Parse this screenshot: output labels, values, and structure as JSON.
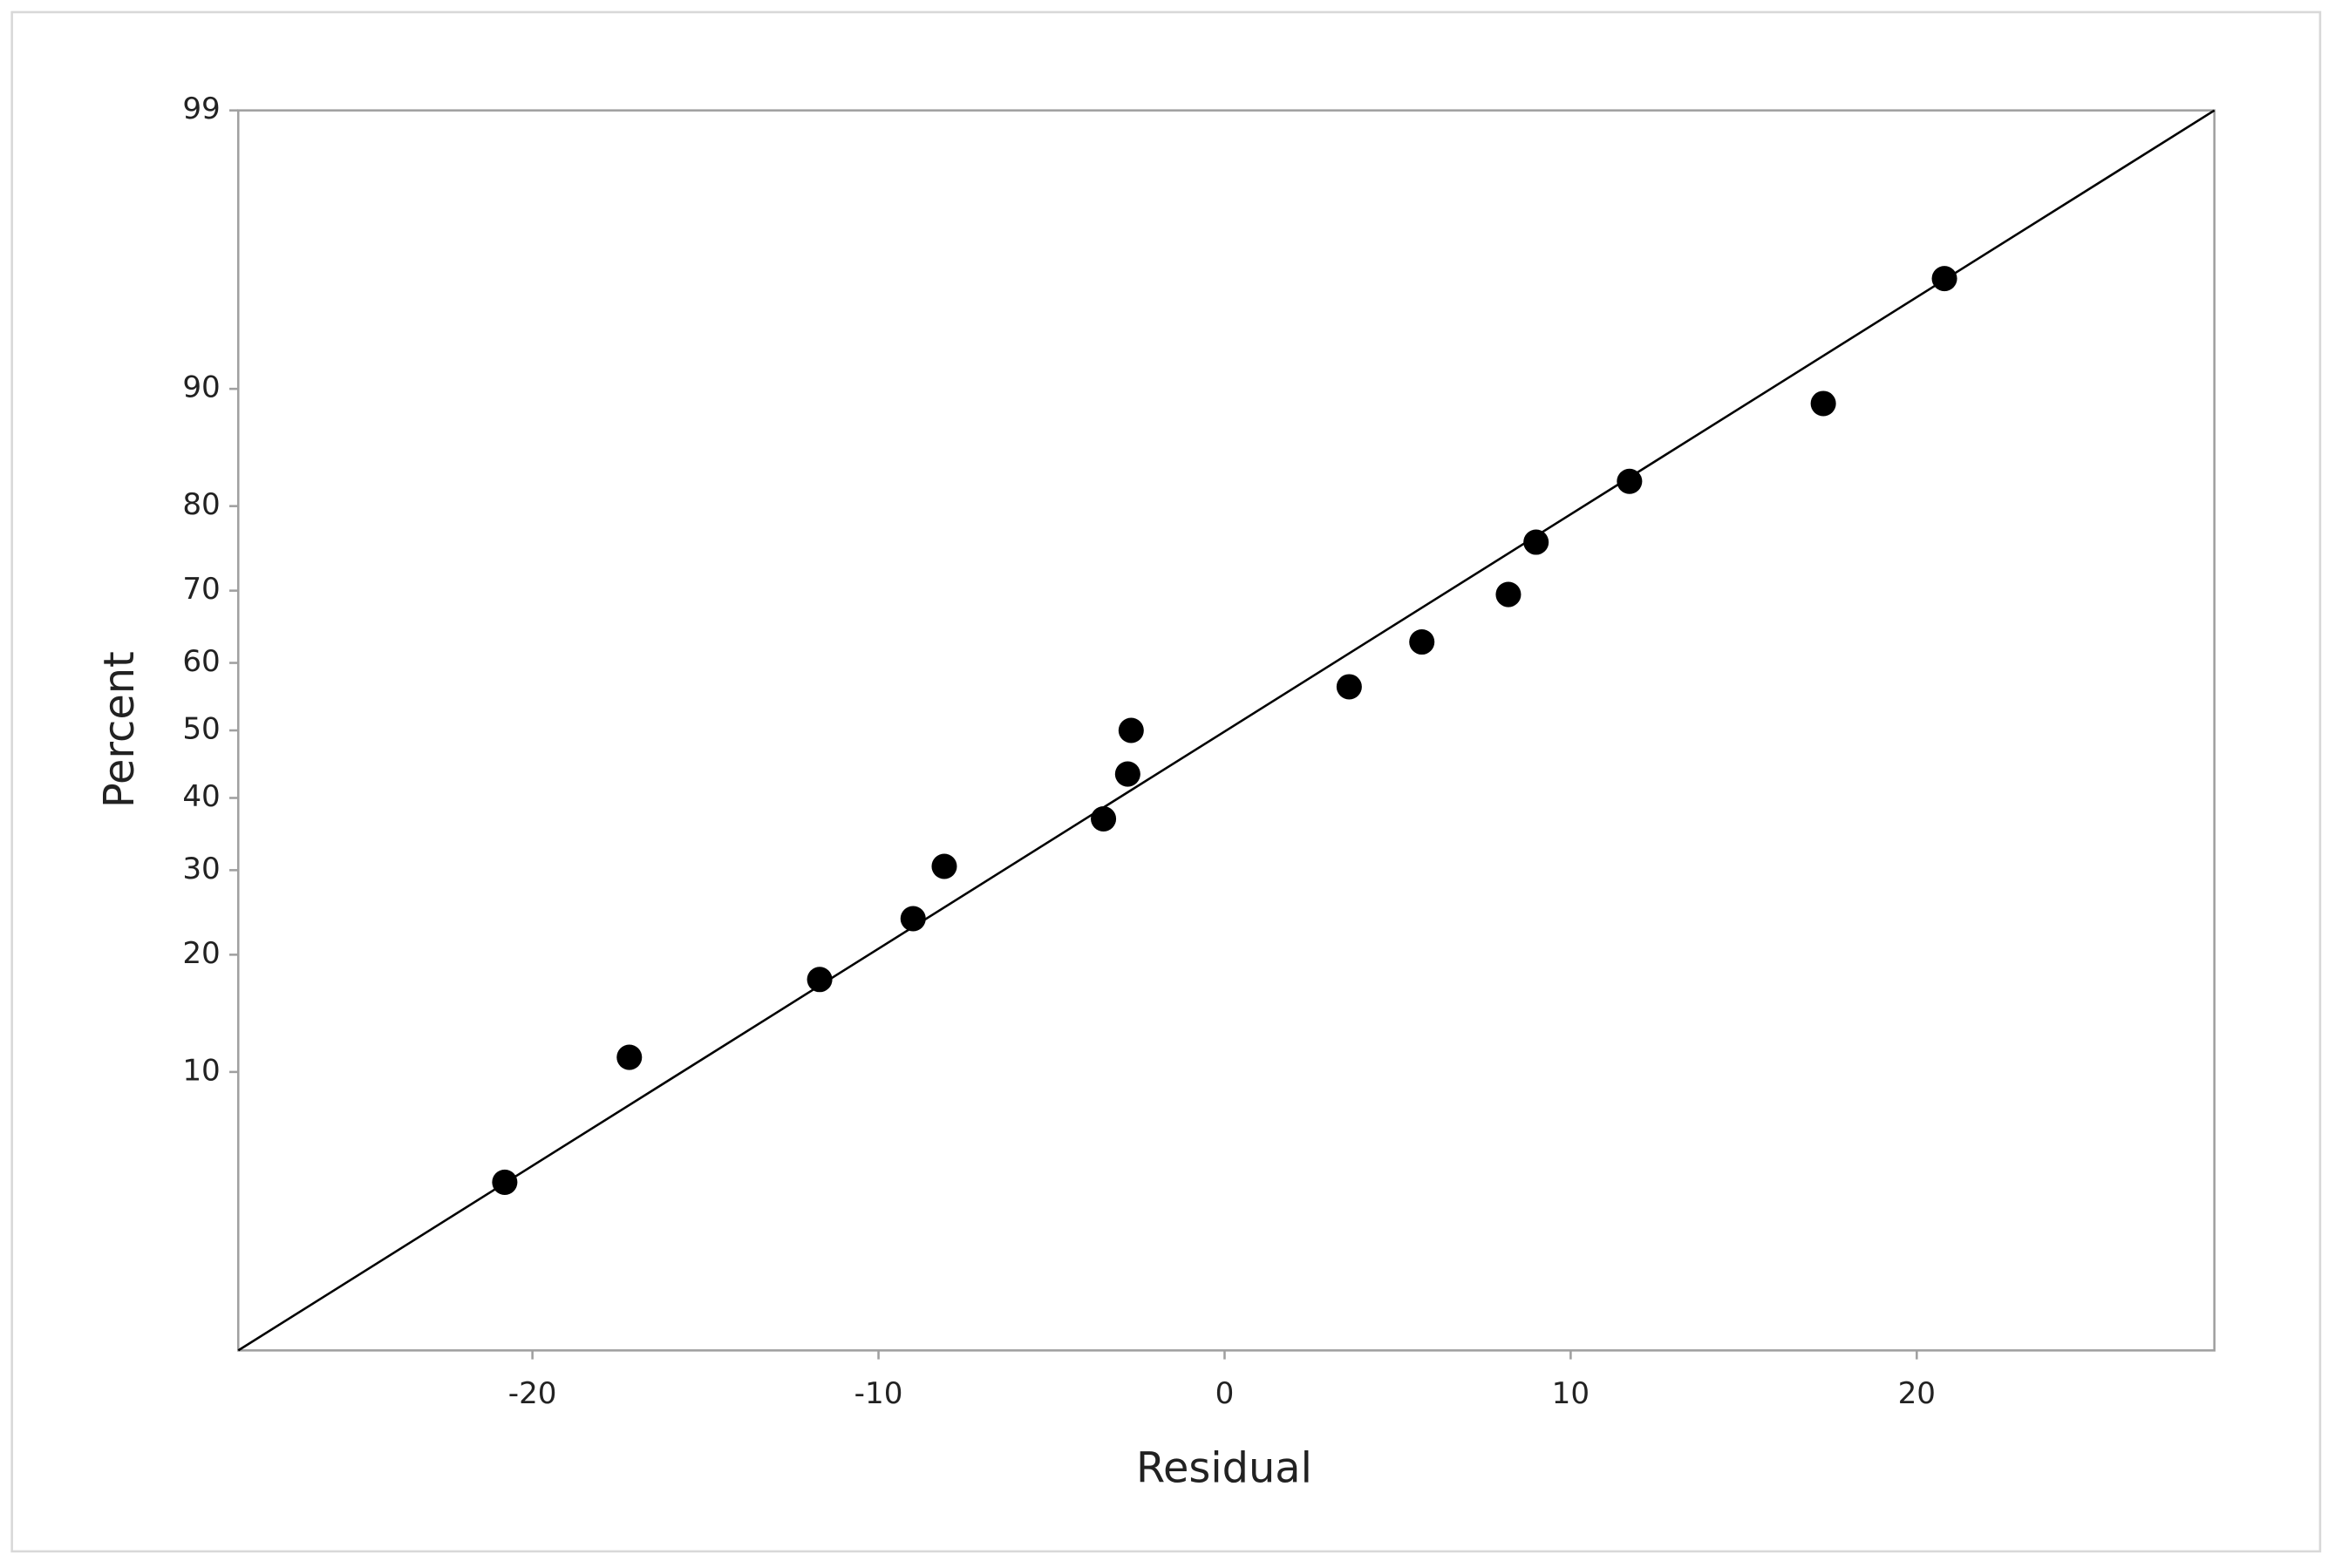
{
  "chart_data": {
    "type": "scatter",
    "xlabel": "Residual",
    "ylabel": "Percent",
    "x": [
      -20.8,
      -17.2,
      -11.7,
      -9.0,
      -8.1,
      -3.5,
      -2.8,
      -2.7,
      3.6,
      5.7,
      8.2,
      9.0,
      11.7,
      17.3,
      20.8
    ],
    "values": [
      4.5,
      11.0,
      17.5,
      24.0,
      30.5,
      37.0,
      43.5,
      50,
      56.5,
      63.0,
      69.5,
      76.0,
      82.5,
      89.0,
      95.5
    ],
    "color": "#000000",
    "fit_line": {
      "x": [
        -28.5,
        28.6
      ],
      "values": [
        1,
        99
      ],
      "color": "#000000"
    },
    "xlim": [
      -28.5,
      28.6
    ],
    "xticks": [
      -20,
      -10,
      0,
      10,
      20
    ],
    "ylim": [
      1,
      99
    ],
    "yticks": [
      10,
      20,
      30,
      40,
      50,
      60,
      70,
      80,
      90,
      99
    ],
    "yscale": "probability",
    "grid": false
  }
}
